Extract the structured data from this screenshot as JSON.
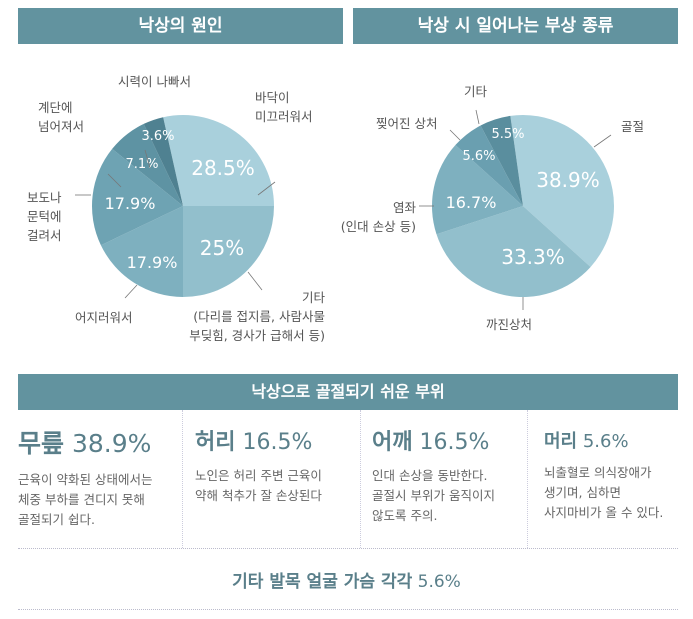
{
  "chart_data": [
    {
      "type": "pie",
      "title": "낙상의 원인",
      "start_angle_deg": -12.6,
      "slices": [
        {
          "label": "바닥이\n미끄러워서",
          "value": 28.5,
          "value_label": "28.5%",
          "color": "#a9d0dc"
        },
        {
          "label": "기타\n(다리를 접지름, 사람사물\n부딪힘, 경사가 급해서 등)",
          "value": 25,
          "value_label": "25%",
          "color": "#92bfcc"
        },
        {
          "label": "어지러워서",
          "value": 17.9,
          "value_label": "17.9%",
          "color": "#7eb0bf"
        },
        {
          "label": "보도나\n문턱에\n걸려서",
          "value": 17.9,
          "value_label": "17.9%",
          "color": "#6ea3b3"
        },
        {
          "label": "계단에\n넘어져서",
          "value": 7.1,
          "value_label": "7.1%",
          "color": "#5e93a3"
        },
        {
          "label": "시력이 나빠서",
          "value": 3.6,
          "value_label": "3.6%",
          "color": "#4f8191"
        }
      ]
    },
    {
      "type": "pie",
      "title": "낙상 시 일어나는 부상 종류",
      "start_angle_deg": -8,
      "slices": [
        {
          "label": "골절",
          "value": 38.9,
          "value_label": "38.9%",
          "color": "#a9d0dc"
        },
        {
          "label": "까진상처",
          "value": 33.3,
          "value_label": "33.3%",
          "color": "#92bfcc"
        },
        {
          "label": "염좌\n(인대 손상 등)",
          "value": 16.7,
          "value_label": "16.7%",
          "color": "#7eb0bf"
        },
        {
          "label": "찢어진 상처",
          "value": 5.6,
          "value_label": "5.6%",
          "color": "#6a9fb0"
        },
        {
          "label": "기타",
          "value": 5.5,
          "value_label": "5.5%",
          "color": "#5a8e9e"
        }
      ]
    }
  ],
  "section": {
    "title": "낙상으로 골절되기 쉬운 부위",
    "items": [
      {
        "part": "무릎",
        "pct": "38.9%",
        "desc": "근육이 약화된 상태에서는\n체중 부하를 견디지 못해\n골절되기 쉽다."
      },
      {
        "part": "허리",
        "pct": "16.5%",
        "desc": "노인은 허리 주변 근육이\n약해 척추가 잘 손상된다"
      },
      {
        "part": "어깨",
        "pct": "16.5%",
        "desc": "인대 손상을 동반한다.\n골절시 부위가 움직이지\n않도록 주의."
      },
      {
        "part": "머리",
        "pct": "5.6%",
        "desc": "뇌출혈로 의식장애가\n생기며, 심하면\n사지마비가 올 수 있다."
      }
    ],
    "footer_parts": "기타 발목 얼굴 가슴 각각",
    "footer_pct": "5.6%"
  }
}
